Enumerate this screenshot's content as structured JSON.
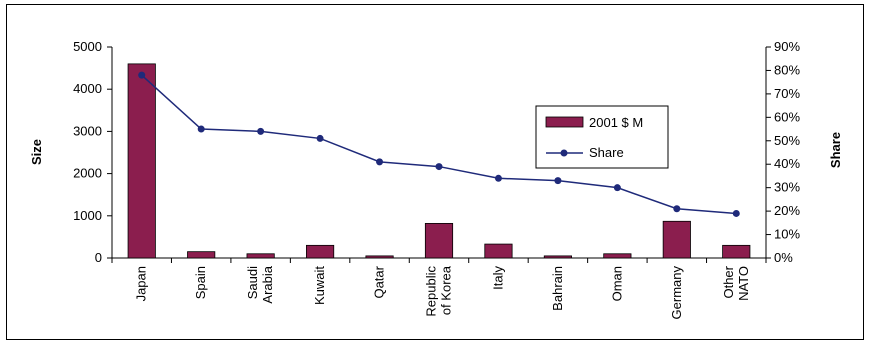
{
  "chart_data": {
    "type": "bar",
    "categories": [
      [
        "Japan"
      ],
      [
        "Spain"
      ],
      [
        "Saudi",
        "Arabia"
      ],
      [
        "Kuwait"
      ],
      [
        "Qatar"
      ],
      [
        "Republic",
        "of Korea"
      ],
      [
        "Italy"
      ],
      [
        "Bahrain"
      ],
      [
        "Oman"
      ],
      [
        "Germany"
      ],
      [
        "Other",
        "NATO"
      ]
    ],
    "series": [
      {
        "name": "2001 $ M",
        "type": "bar",
        "axis": "left",
        "color": "#8b1e4e",
        "values": [
          4600,
          150,
          100,
          300,
          50,
          820,
          330,
          50,
          100,
          870,
          300
        ]
      },
      {
        "name": "Share",
        "type": "line",
        "axis": "right",
        "color": "#1f2a7a",
        "values": [
          0.78,
          0.55,
          0.54,
          0.51,
          0.41,
          0.39,
          0.34,
          0.33,
          0.3,
          0.21,
          0.19
        ]
      }
    ],
    "ylabel": "Size",
    "y2label": "Share",
    "ylim": [
      0,
      5000
    ],
    "y2lim": [
      0,
      0.9
    ],
    "yticks": [
      "0",
      "1000",
      "2000",
      "3000",
      "4000",
      "5000"
    ],
    "y2ticks": [
      "0%",
      "10%",
      "20%",
      "30%",
      "40%",
      "50%",
      "60%",
      "70%",
      "80%",
      "90%"
    ],
    "legend_position": "right",
    "grid": false
  }
}
